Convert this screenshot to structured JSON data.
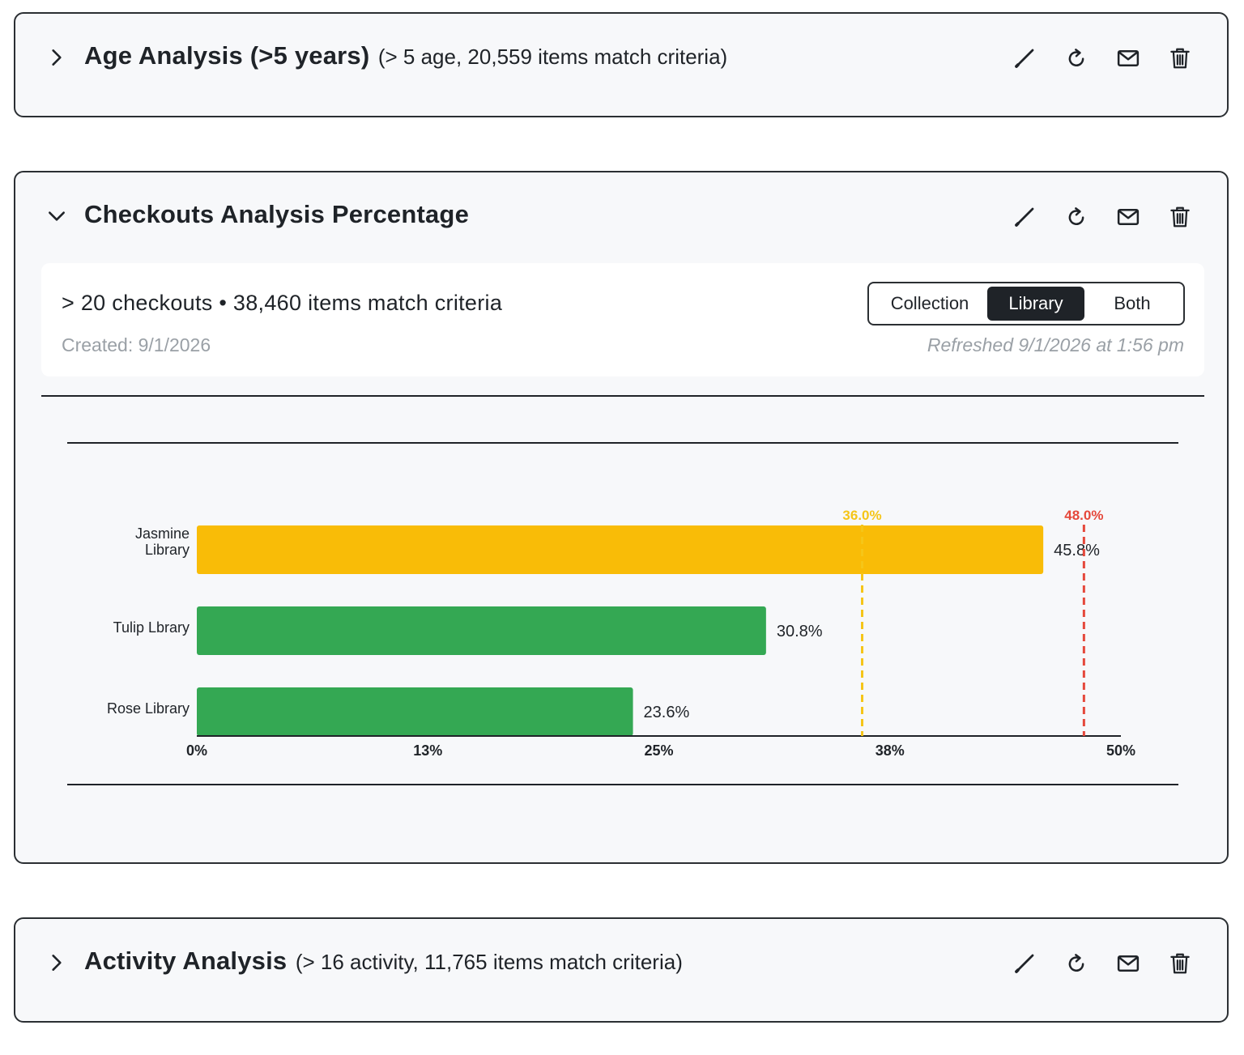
{
  "panels": {
    "age": {
      "title": "Age Analysis (>5 years)",
      "subtitle": "(> 5 age, 20,559 items match criteria)",
      "expanded": false
    },
    "checkouts": {
      "title": "Checkouts Analysis Percentage",
      "expanded": true,
      "criteria": "> 20 checkouts • 38,460 items match criteria",
      "created": "Created: 9/1/2026",
      "refreshed": "Refreshed 9/1/2026 at 1:56 pm",
      "toggle": {
        "options": [
          "Collection",
          "Library",
          "Both"
        ],
        "selected": "Library"
      }
    },
    "activity": {
      "title": "Activity Analysis",
      "subtitle": "(> 16 activity, 11,765 items match criteria)",
      "expanded": false
    }
  },
  "icons": {
    "expand": "chevron-right-icon",
    "collapse": "chevron-down-icon",
    "edit": "pencil-icon",
    "refresh": "refresh-icon",
    "email": "mail-icon",
    "delete": "trash-icon"
  },
  "chart_data": {
    "type": "bar",
    "orientation": "horizontal",
    "categories": [
      "Jasmine Library",
      "Tulip Lbrary",
      "Rose Library"
    ],
    "category_label_lines": [
      [
        "Jasmine",
        "Library"
      ],
      [
        "Tulip Lbrary"
      ],
      [
        "Rose Library"
      ]
    ],
    "values": [
      45.8,
      30.8,
      23.6
    ],
    "value_labels": [
      "45.8%",
      "30.8%",
      "23.6%"
    ],
    "bar_colors": [
      "#f9bc07",
      "#34a853",
      "#34a853"
    ],
    "xlim": [
      0,
      50
    ],
    "xticks": [
      0,
      12.5,
      25,
      37.5,
      50
    ],
    "xtick_labels": [
      "0%",
      "13%",
      "25%",
      "38%",
      "50%"
    ],
    "reference_lines": [
      {
        "value": 36.0,
        "label": "36.0%",
        "color": "#f5c518"
      },
      {
        "value": 48.0,
        "label": "48.0%",
        "color": "#e5483b"
      }
    ],
    "grid": false,
    "legend": "none"
  }
}
